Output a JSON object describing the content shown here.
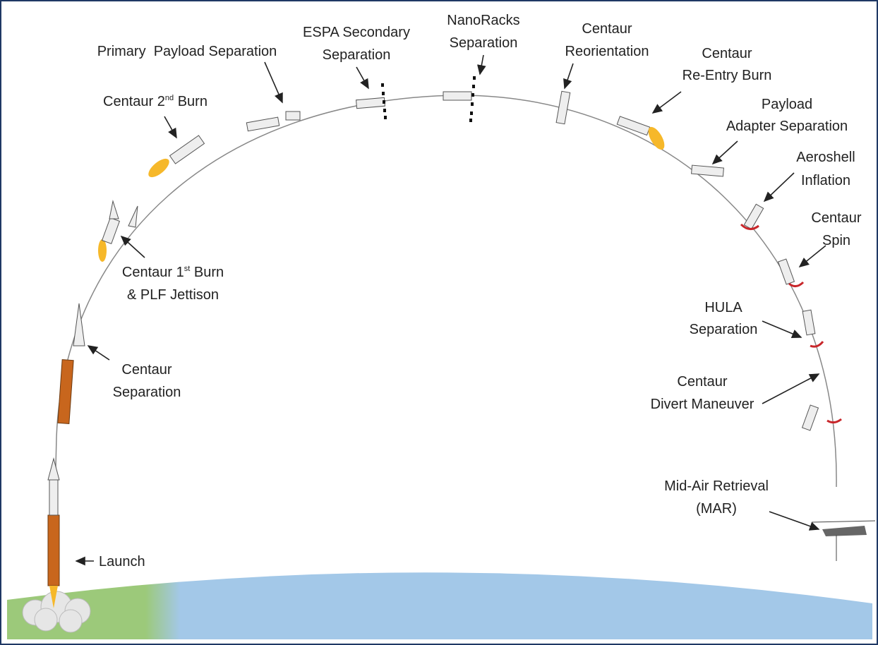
{
  "diagram": {
    "labels": [
      {
        "lines": [
          "Launch"
        ]
      },
      {
        "lines": [
          "Centaur",
          "Separation"
        ]
      },
      {
        "lines": [
          {
            "text": "Centaur 1",
            "sup": "st",
            "after": " Burn"
          },
          "& PLF Jettison"
        ]
      },
      {
        "lines": [
          {
            "text": "Centaur 2",
            "sup": "nd",
            "after": " Burn"
          }
        ]
      },
      {
        "lines": [
          "Primary  Payload Separation"
        ]
      },
      {
        "lines": [
          "ESPA Secondary",
          "Separation"
        ]
      },
      {
        "lines": [
          "NanoRacks",
          "Separation"
        ]
      },
      {
        "lines": [
          "Centaur",
          "Reorientation"
        ]
      },
      {
        "lines": [
          "Centaur",
          "Re-Entry Burn"
        ]
      },
      {
        "lines": [
          "Payload",
          "Adapter Separation"
        ]
      },
      {
        "lines": [
          "Aeroshell",
          "Inflation"
        ]
      },
      {
        "lines": [
          "Centaur",
          "Spin"
        ]
      },
      {
        "lines": [
          "HULA",
          "Separation"
        ]
      },
      {
        "lines": [
          "Centaur",
          "Divert Maneuver"
        ]
      },
      {
        "lines": [
          "Mid-Air Retrieval",
          "(MAR)"
        ]
      }
    ]
  }
}
